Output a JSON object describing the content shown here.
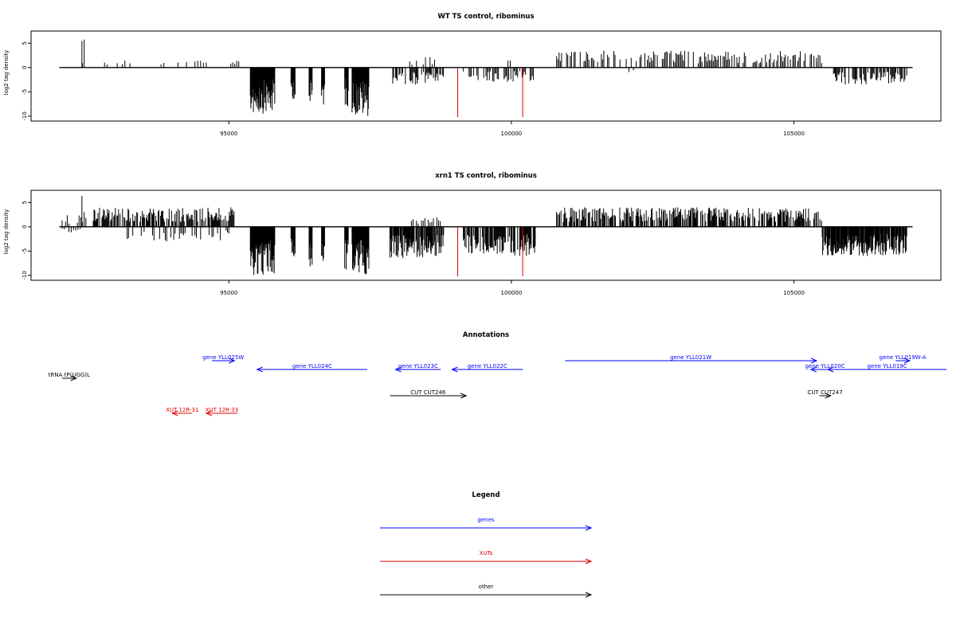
{
  "chart_data": [
    {
      "type": "bar",
      "title": "WT TS control, ribominus",
      "xlabel": "",
      "ylabel": "log2 tag density",
      "xlim": [
        91500,
        107600
      ],
      "ylim": [
        -11,
        7.5
      ],
      "x_ticks": [
        95000,
        100000,
        105000
      ],
      "x_tick_labels": [
        "95000",
        "100000",
        "105000"
      ],
      "y_ticks": [
        5,
        0,
        -5,
        -10
      ],
      "y_tick_labels": [
        "5",
        "0",
        "-5",
        "-10"
      ],
      "baseline": {
        "from": 92000,
        "to": 107100
      },
      "markers": {
        "color": "#e00000",
        "x": [
          99050,
          100200
        ],
        "y": -10.2
      },
      "segments": [
        {
          "from": 92050,
          "to": 92500,
          "step": 60,
          "amp": 1.0,
          "sign": 1,
          "density": 0.25
        },
        {
          "from": 92400,
          "to": 92450,
          "step": 40,
          "amp": 6.8,
          "sign": 1,
          "density": 1
        },
        {
          "from": 92800,
          "to": 93300,
          "step": 45,
          "amp": 1.5,
          "sign": 1,
          "density": 0.55
        },
        {
          "from": 93800,
          "to": 94600,
          "step": 50,
          "amp": 1.8,
          "sign": 1,
          "density": 0.45
        },
        {
          "from": 95000,
          "to": 95200,
          "step": 35,
          "amp": 3.0,
          "sign": 1,
          "density": 0.7
        },
        {
          "from": 95380,
          "to": 95820,
          "step": 9,
          "amp": 9.5,
          "sign": -1,
          "density": 1
        },
        {
          "from": 96100,
          "to": 96180,
          "step": 9,
          "amp": 6.5,
          "sign": -1,
          "density": 1
        },
        {
          "from": 96420,
          "to": 96480,
          "step": 9,
          "amp": 9.0,
          "sign": -1,
          "density": 1
        },
        {
          "from": 96640,
          "to": 96700,
          "step": 9,
          "amp": 8.0,
          "sign": -1,
          "density": 1
        },
        {
          "from": 97050,
          "to": 97120,
          "step": 9,
          "amp": 8.0,
          "sign": -1,
          "density": 1
        },
        {
          "from": 97180,
          "to": 97480,
          "step": 9,
          "amp": 10.0,
          "sign": -1,
          "density": 1
        },
        {
          "from": 97900,
          "to": 98800,
          "step": 16,
          "amp": 3.5,
          "sign": -1,
          "density": 0.7
        },
        {
          "from": 98200,
          "to": 98800,
          "step": 40,
          "amp": 2.2,
          "sign": 1,
          "density": 0.45
        },
        {
          "from": 99150,
          "to": 100400,
          "step": 20,
          "amp": 3.0,
          "sign": -1,
          "density": 0.55
        },
        {
          "from": 99900,
          "to": 100000,
          "step": 40,
          "amp": 2.0,
          "sign": 1,
          "density": 0.7
        },
        {
          "from": 100800,
          "to": 105400,
          "step": 22,
          "amp": 3.5,
          "sign": 1,
          "density": 0.6
        },
        {
          "from": 102000,
          "to": 102200,
          "step": 80,
          "amp": 2.0,
          "sign": -1,
          "density": 0.5
        },
        {
          "from": 105400,
          "to": 105500,
          "step": 30,
          "amp": 3.5,
          "sign": 1,
          "density": 1
        },
        {
          "from": 105700,
          "to": 107000,
          "step": 16,
          "amp": 3.5,
          "sign": -1,
          "density": 0.7
        }
      ]
    },
    {
      "type": "bar",
      "title": "xrn1 TS control, ribominus",
      "xlabel": "",
      "ylabel": "log2 tag density",
      "xlim": [
        91500,
        107600
      ],
      "ylim": [
        -11,
        7.5
      ],
      "x_ticks": [
        95000,
        100000,
        105000
      ],
      "x_tick_labels": [
        "95000",
        "100000",
        "105000"
      ],
      "y_ticks": [
        5,
        0,
        -5,
        -10
      ],
      "y_tick_labels": [
        "5",
        "0",
        "-5",
        "-10"
      ],
      "baseline": {
        "from": 92000,
        "to": 107100
      },
      "markers": {
        "color": "#e00000",
        "x": [
          99050,
          100200
        ],
        "y": -10.2
      },
      "segments": [
        {
          "from": 92050,
          "to": 92500,
          "step": 30,
          "amp": 2.5,
          "sign": 1,
          "density": 0.6
        },
        {
          "from": 92050,
          "to": 92400,
          "step": 40,
          "amp": 1.2,
          "sign": -1,
          "density": 0.5
        },
        {
          "from": 92400,
          "to": 92450,
          "step": 40,
          "amp": 6.5,
          "sign": 1,
          "density": 1
        },
        {
          "from": 92600,
          "to": 95100,
          "step": 14,
          "amp": 4.0,
          "sign": 1,
          "density": 0.75
        },
        {
          "from": 93200,
          "to": 95000,
          "step": 25,
          "amp": 3.0,
          "sign": -1,
          "density": 0.55
        },
        {
          "from": 95380,
          "to": 95820,
          "step": 9,
          "amp": 10.0,
          "sign": -1,
          "density": 1
        },
        {
          "from": 96100,
          "to": 96180,
          "step": 9,
          "amp": 7.0,
          "sign": -1,
          "density": 1
        },
        {
          "from": 96420,
          "to": 96480,
          "step": 9,
          "amp": 9.0,
          "sign": -1,
          "density": 1
        },
        {
          "from": 96640,
          "to": 96700,
          "step": 9,
          "amp": 8.0,
          "sign": -1,
          "density": 1
        },
        {
          "from": 97050,
          "to": 97120,
          "step": 9,
          "amp": 9.0,
          "sign": -1,
          "density": 1
        },
        {
          "from": 97180,
          "to": 97480,
          "step": 9,
          "amp": 10.0,
          "sign": -1,
          "density": 1
        },
        {
          "from": 97850,
          "to": 98800,
          "step": 10,
          "amp": 6.5,
          "sign": -1,
          "density": 0.85
        },
        {
          "from": 98200,
          "to": 98800,
          "step": 30,
          "amp": 2.0,
          "sign": 1,
          "density": 0.5
        },
        {
          "from": 99150,
          "to": 100450,
          "step": 12,
          "amp": 6.0,
          "sign": -1,
          "density": 0.7
        },
        {
          "from": 99850,
          "to": 100000,
          "step": 40,
          "amp": 2.5,
          "sign": 1,
          "density": 0.7
        },
        {
          "from": 100800,
          "to": 105400,
          "step": 13,
          "amp": 4.0,
          "sign": 1,
          "density": 0.75
        },
        {
          "from": 105400,
          "to": 105500,
          "step": 30,
          "amp": 3.5,
          "sign": 1,
          "density": 1
        },
        {
          "from": 105500,
          "to": 107000,
          "step": 8,
          "amp": 6.0,
          "sign": -1,
          "density": 0.9
        }
      ]
    }
  ],
  "annotations": {
    "title": "Annotations",
    "features": [
      {
        "label": "tRNA tP(UGG)L",
        "color": "#000000",
        "row": 3,
        "start": 92050,
        "end": 92300,
        "dir": 1
      },
      {
        "label": "gene YLL025W",
        "color": "#0000ff",
        "row": 1,
        "start": 94700,
        "end": 95100,
        "dir": 1
      },
      {
        "label": "gene YLL024C",
        "color": "#0000ff",
        "row": 2,
        "start": 95500,
        "end": 97450,
        "dir": -1
      },
      {
        "label": "gene YLL023C",
        "color": "#0000ff",
        "row": 2,
        "start": 97950,
        "end": 98750,
        "dir": -1
      },
      {
        "label": "gene YLL022C",
        "color": "#0000ff",
        "row": 2,
        "start": 98950,
        "end": 100200,
        "dir": -1
      },
      {
        "label": "gene YLL021W",
        "color": "#0000ff",
        "row": 1,
        "start": 100950,
        "end": 105400,
        "dir": 1
      },
      {
        "label": "gene YLL020C",
        "color": "#0000ff",
        "row": 2,
        "start": 105300,
        "end": 105800,
        "dir": -1
      },
      {
        "label": "gene YLL019C",
        "color": "#0000ff",
        "row": 2,
        "start": 105600,
        "end": 107700,
        "dir": -1
      },
      {
        "label": "gene YLL019W-A",
        "color": "#0000ff",
        "row": 1,
        "start": 106800,
        "end": 107050,
        "dir": 1
      },
      {
        "label": "CUT CUT246",
        "color": "#000000",
        "row": 5,
        "start": 97850,
        "end": 99200,
        "dir": 1
      },
      {
        "label": "CUT CUT247",
        "color": "#000000",
        "row": 5,
        "start": 105450,
        "end": 105650,
        "dir": 1
      },
      {
        "label": "XUT 12R-31",
        "color": "#e00000",
        "row": 7,
        "start": 94000,
        "end": 94350,
        "dir": -1
      },
      {
        "label": "XUT 12R-33",
        "color": "#e00000",
        "row": 7,
        "start": 94600,
        "end": 95150,
        "dir": -1
      }
    ]
  },
  "legend": {
    "title": "Legend",
    "items": [
      {
        "label": "genes",
        "color": "#0000ff"
      },
      {
        "label": "XUTs",
        "color": "#e00000"
      },
      {
        "label": "other",
        "color": "#000000"
      }
    ]
  }
}
